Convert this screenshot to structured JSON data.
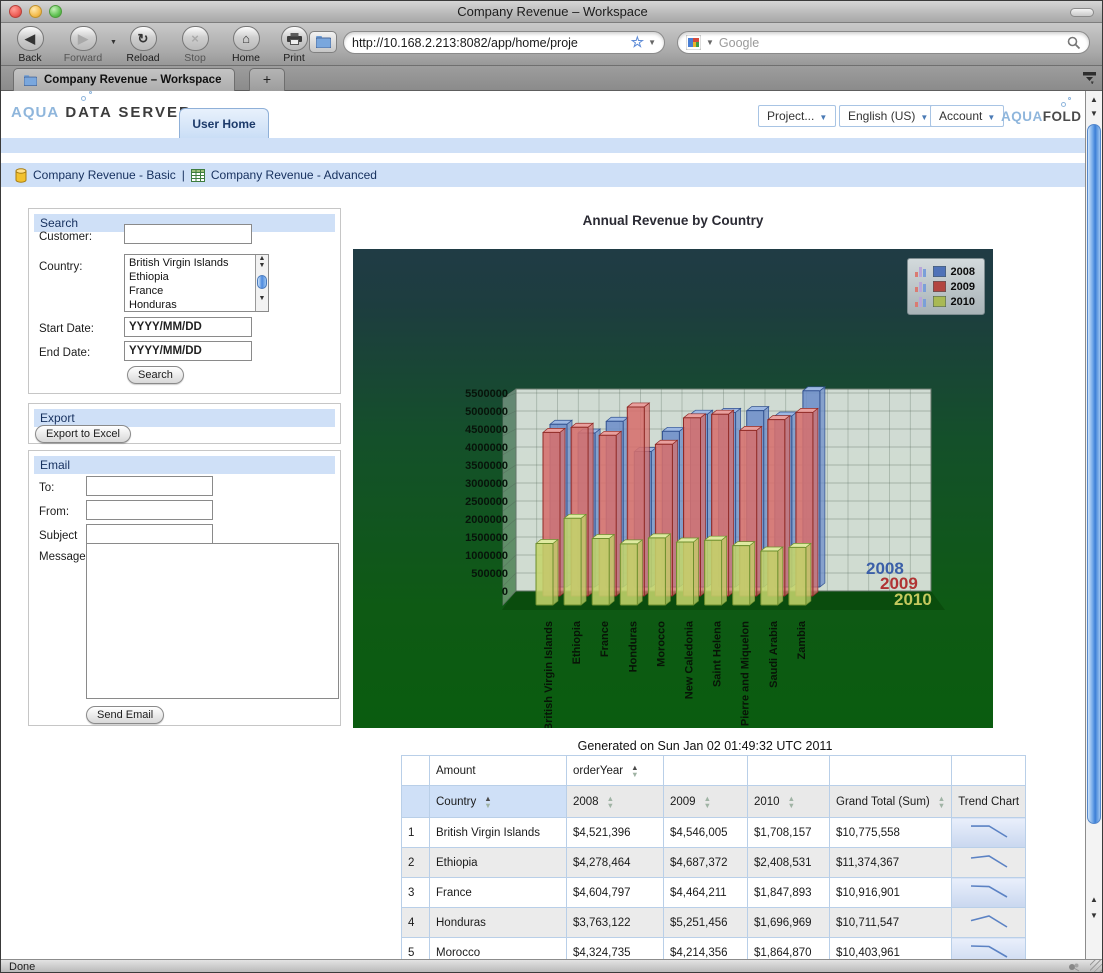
{
  "browser": {
    "window_title": "Company Revenue – Workspace",
    "toolbar": {
      "back": "Back",
      "forward": "Forward",
      "reload": "Reload",
      "stop": "Stop",
      "home": "Home",
      "print": "Print"
    },
    "url": "http://10.168.2.213:8082/app/home/proje",
    "search_placeholder": "Google",
    "tab_title": "Company Revenue – Workspace",
    "new_tab": "+",
    "status": "Done"
  },
  "header": {
    "logo_aqua": "AQUA",
    "logo_rest": " DATA SERVER",
    "nav_tab": "User Home",
    "menus": {
      "project": "Project...",
      "language": "English (US)",
      "account": "Account"
    },
    "brand_aqua": "AQUA",
    "brand_fold": "FOLD"
  },
  "breadcrumb": {
    "basic": "Company Revenue - Basic",
    "separator": "|",
    "advanced": "Company Revenue - Advanced"
  },
  "search_panel": {
    "title": "Search",
    "customer_label": "Customer:",
    "country_label": "Country:",
    "countries": [
      "British Virgin Islands",
      "Ethiopia",
      "France",
      "Honduras"
    ],
    "start_label": "Start Date:",
    "end_label": "End Date:",
    "start_value": "YYYY/MM/DD",
    "end_value": "YYYY/MM/DD",
    "search_button": "Search"
  },
  "export_panel": {
    "title": "Export",
    "button": "Export to Excel"
  },
  "email_panel": {
    "title": "Email",
    "to_label": "To:",
    "from_label": "From:",
    "subject_label": "Subject",
    "message_label": "Message",
    "send_button": "Send Email"
  },
  "chart_data": {
    "type": "bar",
    "title": "Annual Revenue by Country",
    "categories": [
      "British Virgin Islands",
      "Ethiopia",
      "France",
      "Honduras",
      "Morocco",
      "New Caledonia",
      "Saint Helena",
      "Saint Pierre and Miquelon",
      "Saudi Arabia",
      "Zambia"
    ],
    "series": [
      {
        "name": "2008",
        "color": "#4f72b8",
        "values": [
          4521396,
          4278464,
          4604797,
          3763122,
          4324735,
          4800000,
          4850000,
          4900000,
          4750000,
          5450000
        ]
      },
      {
        "name": "2009",
        "color": "#b34641",
        "values": [
          4546005,
          4687372,
          4464211,
          5251456,
          4214356,
          4950000,
          5050000,
          4600000,
          4900000,
          5100000
        ]
      },
      {
        "name": "2010",
        "color": "#a9b954",
        "values": [
          1708157,
          2408531,
          1847893,
          1696969,
          1864870,
          1750000,
          1800000,
          1650000,
          1500000,
          1600000
        ]
      }
    ],
    "ylim": [
      0,
      5500000
    ],
    "ytick_step": 500000,
    "legend_position": "top-right",
    "note_last_5_values_estimated_from_bars": true
  },
  "table": {
    "caption": "Generated on Sun Jan 02 01:49:32 UTC 2011",
    "group_header": {
      "amount": "Amount",
      "order_year": "orderYear"
    },
    "columns": [
      "Country",
      "2008",
      "2009",
      "2010",
      "Grand Total (Sum)",
      "Trend Chart"
    ],
    "rows": [
      {
        "num": "1",
        "country": "British Virgin Islands",
        "y2008": "$4,521,396",
        "y2009": "$4,546,005",
        "y2010": "$1,708,157",
        "total": "$10,775,558"
      },
      {
        "num": "2",
        "country": "Ethiopia",
        "y2008": "$4,278,464",
        "y2009": "$4,687,372",
        "y2010": "$2,408,531",
        "total": "$11,374,367"
      },
      {
        "num": "3",
        "country": "France",
        "y2008": "$4,604,797",
        "y2009": "$4,464,211",
        "y2010": "$1,847,893",
        "total": "$10,916,901"
      },
      {
        "num": "4",
        "country": "Honduras",
        "y2008": "$3,763,122",
        "y2009": "$5,251,456",
        "y2010": "$1,696,969",
        "total": "$10,711,547"
      },
      {
        "num": "5",
        "country": "Morocco",
        "y2008": "$4,324,735",
        "y2009": "$4,214,356",
        "y2010": "$1,864,870",
        "total": "$10,403,961"
      }
    ]
  },
  "colors": {
    "panel_header_bg": "#cfe0f7",
    "table_border": "#b9cfe8",
    "link_text": "#16305e",
    "scrollbar_thumb": "#3c7fd6"
  }
}
